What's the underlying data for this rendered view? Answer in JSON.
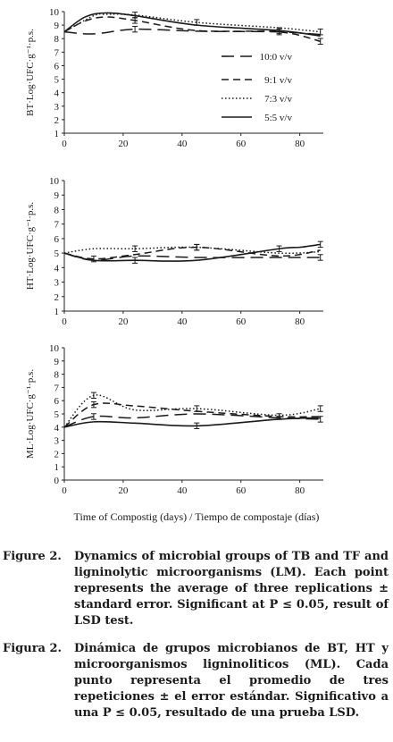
{
  "chart_data": [
    {
      "type": "line",
      "panel": "BT",
      "ylabel": "BT·Log·UFC·g⁻¹·p.s.",
      "xlim": [
        0,
        88
      ],
      "ylim": [
        1,
        10
      ],
      "xticks": [
        0,
        20,
        40,
        60,
        80
      ],
      "yticks": [
        1,
        2,
        3,
        4,
        5,
        6,
        7,
        8,
        9,
        10
      ],
      "legend_position": "right",
      "series": [
        {
          "name": "10:0 v/v",
          "style": "long-dash",
          "x": [
            0,
            10,
            24,
            45,
            73,
            87
          ],
          "y": [
            8.5,
            8.35,
            8.7,
            8.55,
            8.5,
            8.3
          ],
          "error_bars_at": [
            24,
            73
          ]
        },
        {
          "name": "9:1 v/v",
          "style": "dash",
          "x": [
            0,
            7,
            14,
            24,
            45,
            73,
            87
          ],
          "y": [
            8.5,
            9.3,
            9.6,
            9.35,
            8.6,
            8.5,
            7.8
          ],
          "error_bars_at": [
            24,
            87
          ]
        },
        {
          "name": "7:3 v/v",
          "style": "dotted",
          "x": [
            0,
            10,
            14,
            24,
            45,
            73,
            87
          ],
          "y": [
            8.5,
            9.7,
            9.8,
            9.75,
            9.2,
            8.8,
            8.5
          ],
          "error_bars_at": [
            24,
            45,
            87
          ]
        },
        {
          "name": "5:5 v/v",
          "style": "solid",
          "x": [
            0,
            7,
            14,
            24,
            45,
            73,
            87
          ],
          "y": [
            8.5,
            9.6,
            9.9,
            9.7,
            9.0,
            8.6,
            8.2
          ],
          "error_bars_at": [
            73
          ]
        }
      ]
    },
    {
      "type": "line",
      "panel": "HT",
      "ylabel": "HT·Log·UFC·g⁻¹·p.s.",
      "xlim": [
        0,
        88
      ],
      "ylim": [
        1,
        10
      ],
      "xticks": [
        0,
        20,
        40,
        60,
        80
      ],
      "yticks": [
        1,
        2,
        3,
        4,
        5,
        6,
        7,
        8,
        9,
        10
      ],
      "series": [
        {
          "name": "10:0 v/v",
          "style": "long-dash",
          "x": [
            0,
            10,
            24,
            45,
            73,
            87
          ],
          "y": [
            5.0,
            4.5,
            4.8,
            4.7,
            4.7,
            4.7
          ],
          "error_bars_at": [
            87
          ]
        },
        {
          "name": "9:1 v/v",
          "style": "dash",
          "x": [
            0,
            10,
            24,
            45,
            73,
            87
          ],
          "y": [
            5.0,
            4.6,
            4.9,
            5.4,
            4.8,
            5.2
          ],
          "error_bars_at": [
            10,
            45
          ]
        },
        {
          "name": "7:3 v/v",
          "style": "dotted",
          "x": [
            0,
            10,
            24,
            45,
            73,
            87
          ],
          "y": [
            5.0,
            5.3,
            5.3,
            5.4,
            5.0,
            5.1
          ],
          "error_bars_at": [
            24,
            45
          ]
        },
        {
          "name": "5:5 v/v",
          "style": "solid",
          "x": [
            0,
            10,
            24,
            45,
            73,
            80,
            87
          ],
          "y": [
            5.0,
            4.5,
            4.5,
            4.5,
            5.3,
            5.4,
            5.6
          ],
          "error_bars_at": [
            24,
            73,
            87
          ]
        }
      ]
    },
    {
      "type": "line",
      "panel": "ML",
      "ylabel": "ML·Log·UFC·g⁻¹·p.s.",
      "xlim": [
        0,
        88
      ],
      "ylim": [
        0,
        10
      ],
      "xticks": [
        0,
        20,
        40,
        60,
        80
      ],
      "yticks": [
        0,
        1,
        2,
        3,
        4,
        5,
        6,
        7,
        8,
        9,
        10
      ],
      "series": [
        {
          "name": "10:0 v/v",
          "style": "long-dash",
          "x": [
            0,
            10,
            24,
            45,
            73,
            87
          ],
          "y": [
            4.0,
            4.8,
            4.7,
            5.0,
            4.7,
            4.6
          ],
          "error_bars_at": [
            10,
            87
          ]
        },
        {
          "name": "9:1 v/v",
          "style": "dash",
          "x": [
            0,
            10,
            24,
            45,
            73,
            87
          ],
          "y": [
            4.0,
            5.7,
            5.6,
            5.2,
            4.8,
            4.8
          ],
          "error_bars_at": [
            10,
            73
          ]
        },
        {
          "name": "7:3 v/v",
          "style": "dotted",
          "x": [
            0,
            10,
            24,
            45,
            73,
            87
          ],
          "y": [
            4.0,
            6.4,
            5.3,
            5.4,
            4.9,
            5.4
          ],
          "error_bars_at": [
            10,
            45,
            87
          ]
        },
        {
          "name": "5:5 v/v",
          "style": "solid",
          "x": [
            0,
            10,
            24,
            45,
            73,
            87
          ],
          "y": [
            4.0,
            4.4,
            4.3,
            4.1,
            4.6,
            4.7
          ],
          "error_bars_at": [
            45
          ]
        }
      ]
    }
  ],
  "shared_xlabel": "Time of Compostig (days) / Tiempo de compostaje (días)",
  "caption_en": {
    "label": "Figure 2.",
    "text": "Dynamics of microbial groups of TB and TF and ligninolytic microorganisms (LM). Each point represents the average of three replications ± standard error. Significant at P ≤ 0.05, result of LSD test."
  },
  "caption_es": {
    "label": "Figura 2.",
    "text": "Dinámica de grupos microbianos de BT, HT y microorganismos ligninoliticos (ML). Cada punto representa el promedio de tres repeticiones ± el error estándar. Significativo a una P ≤ 0.05, resultado de una prueba LSD."
  }
}
